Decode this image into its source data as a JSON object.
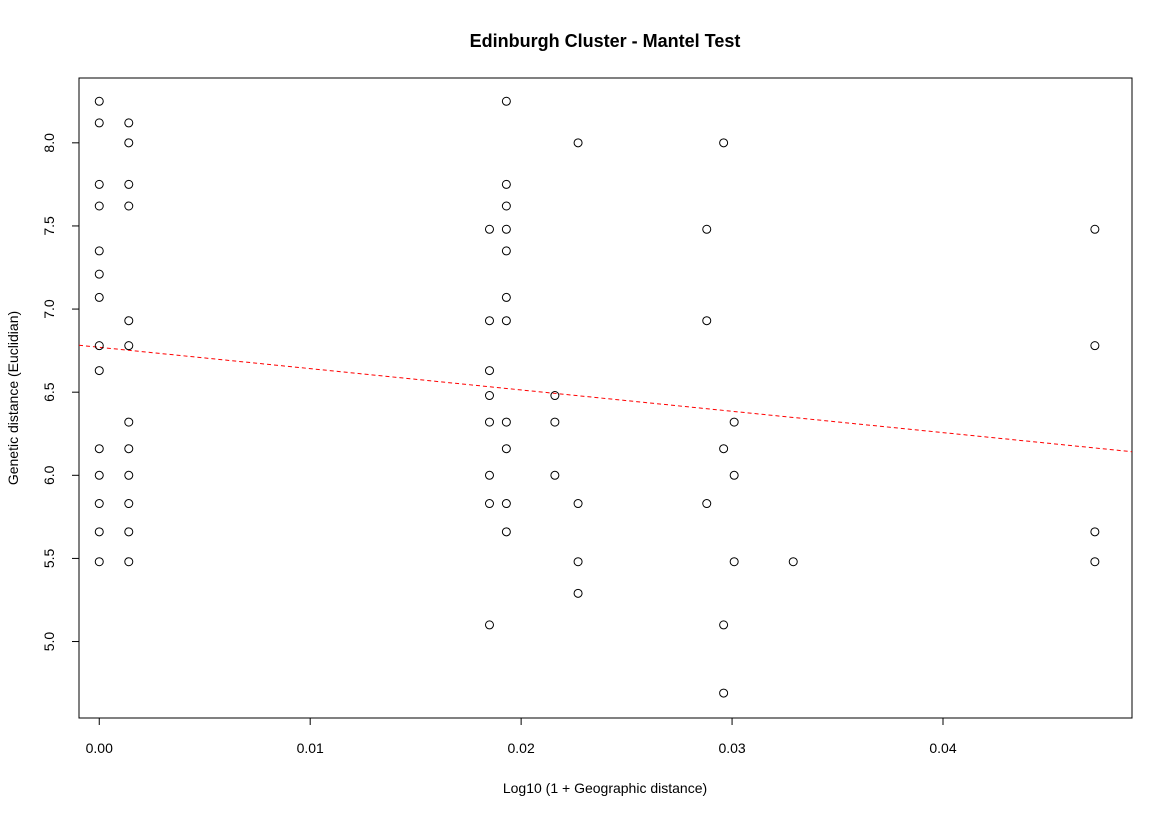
{
  "chart_data": {
    "type": "scatter",
    "title": "Edinburgh Cluster - Mantel Test",
    "xlabel": "Log10 (1 + Geographic distance)",
    "ylabel": "Genetic distance (Euclidian)",
    "xlim": [
      -0.00096,
      0.04896
    ],
    "ylim": [
      4.54,
      8.39
    ],
    "xticks": [
      0.0,
      0.01,
      0.02,
      0.03,
      0.04
    ],
    "xtick_labels": [
      "0.00",
      "0.01",
      "0.02",
      "0.03",
      "0.04"
    ],
    "yticks": [
      5.0,
      5.5,
      6.0,
      6.5,
      7.0,
      7.5,
      8.0
    ],
    "ytick_labels": [
      "5.0",
      "5.5",
      "6.0",
      "6.5",
      "7.0",
      "7.5",
      "8.0"
    ],
    "grid": false,
    "legend": "none",
    "point_style": "open-circle",
    "points": [
      {
        "x": 0.0,
        "y": 8.25
      },
      {
        "x": 0.0,
        "y": 8.12
      },
      {
        "x": 0.0,
        "y": 7.75
      },
      {
        "x": 0.0,
        "y": 7.62
      },
      {
        "x": 0.0,
        "y": 7.35
      },
      {
        "x": 0.0,
        "y": 7.21
      },
      {
        "x": 0.0,
        "y": 7.07
      },
      {
        "x": 0.0,
        "y": 6.78
      },
      {
        "x": 0.0,
        "y": 6.63
      },
      {
        "x": 0.0,
        "y": 6.16
      },
      {
        "x": 0.0,
        "y": 6.0
      },
      {
        "x": 0.0,
        "y": 5.83
      },
      {
        "x": 0.0,
        "y": 5.66
      },
      {
        "x": 0.0,
        "y": 5.48
      },
      {
        "x": 0.0014,
        "y": 8.12
      },
      {
        "x": 0.0014,
        "y": 8.0
      },
      {
        "x": 0.0014,
        "y": 7.75
      },
      {
        "x": 0.0014,
        "y": 7.62
      },
      {
        "x": 0.0014,
        "y": 6.93
      },
      {
        "x": 0.0014,
        "y": 6.78
      },
      {
        "x": 0.0014,
        "y": 6.32
      },
      {
        "x": 0.0014,
        "y": 6.16
      },
      {
        "x": 0.0014,
        "y": 6.0
      },
      {
        "x": 0.0014,
        "y": 5.83
      },
      {
        "x": 0.0014,
        "y": 5.66
      },
      {
        "x": 0.0014,
        "y": 5.48
      },
      {
        "x": 0.0185,
        "y": 7.48
      },
      {
        "x": 0.0185,
        "y": 6.93
      },
      {
        "x": 0.0185,
        "y": 6.63
      },
      {
        "x": 0.0185,
        "y": 6.48
      },
      {
        "x": 0.0185,
        "y": 6.32
      },
      {
        "x": 0.0185,
        "y": 6.0
      },
      {
        "x": 0.0185,
        "y": 5.83
      },
      {
        "x": 0.0185,
        "y": 5.1
      },
      {
        "x": 0.0193,
        "y": 8.25
      },
      {
        "x": 0.0193,
        "y": 7.75
      },
      {
        "x": 0.0193,
        "y": 7.62
      },
      {
        "x": 0.0193,
        "y": 7.48
      },
      {
        "x": 0.0193,
        "y": 7.35
      },
      {
        "x": 0.0193,
        "y": 7.07
      },
      {
        "x": 0.0193,
        "y": 6.93
      },
      {
        "x": 0.0193,
        "y": 6.32
      },
      {
        "x": 0.0193,
        "y": 6.16
      },
      {
        "x": 0.0193,
        "y": 5.83
      },
      {
        "x": 0.0193,
        "y": 5.66
      },
      {
        "x": 0.0216,
        "y": 6.48
      },
      {
        "x": 0.0216,
        "y": 6.32
      },
      {
        "x": 0.0216,
        "y": 6.0
      },
      {
        "x": 0.0227,
        "y": 8.0
      },
      {
        "x": 0.0227,
        "y": 5.83
      },
      {
        "x": 0.0227,
        "y": 5.48
      },
      {
        "x": 0.0227,
        "y": 5.29
      },
      {
        "x": 0.0288,
        "y": 7.48
      },
      {
        "x": 0.0288,
        "y": 6.93
      },
      {
        "x": 0.0288,
        "y": 5.83
      },
      {
        "x": 0.0296,
        "y": 8.0
      },
      {
        "x": 0.0296,
        "y": 6.16
      },
      {
        "x": 0.0296,
        "y": 5.1
      },
      {
        "x": 0.0296,
        "y": 4.69
      },
      {
        "x": 0.0301,
        "y": 6.32
      },
      {
        "x": 0.0301,
        "y": 6.0
      },
      {
        "x": 0.0301,
        "y": 5.48
      },
      {
        "x": 0.0329,
        "y": 5.48
      },
      {
        "x": 0.0472,
        "y": 7.48
      },
      {
        "x": 0.0472,
        "y": 6.78
      },
      {
        "x": 0.0472,
        "y": 5.66
      },
      {
        "x": 0.0472,
        "y": 5.48
      }
    ],
    "regression_line": {
      "style": "dashed",
      "color": "#ff0000",
      "intercept": 6.77,
      "slope": -12.83
    }
  }
}
